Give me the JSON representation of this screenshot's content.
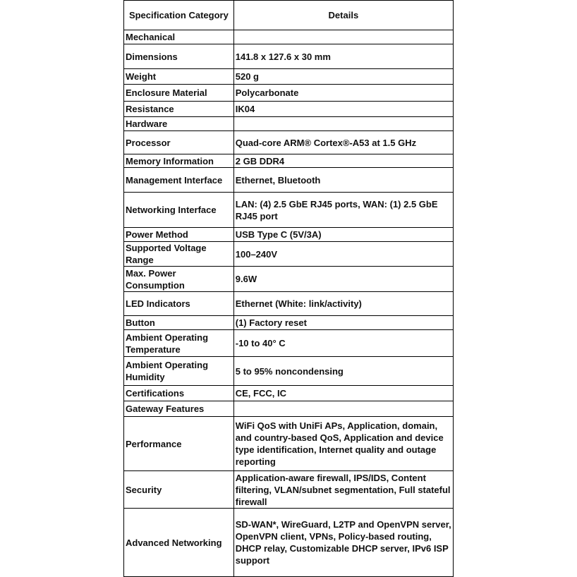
{
  "header": {
    "category": "Specification Category",
    "details": "Details"
  },
  "rows": [
    {
      "category": "Mechanical",
      "details": ""
    },
    {
      "category": "Dimensions",
      "details": "141.8 x 127.6 x 30 mm"
    },
    {
      "category": "Weight",
      "details": "520 g"
    },
    {
      "category": "Enclosure Material",
      "details": "Polycarbonate"
    },
    {
      "category": "Resistance",
      "details": "IK04"
    },
    {
      "category": "Hardware",
      "details": ""
    },
    {
      "category": "Processor",
      "details": "Quad-core ARM® Cortex®-A53 at 1.5 GHz"
    },
    {
      "category": "Memory Information",
      "details": "2 GB DDR4"
    },
    {
      "category": "Management Interface",
      "details": "Ethernet, Bluetooth"
    },
    {
      "category": "Networking Interface",
      "details": "LAN: (4) 2.5 GbE RJ45 ports, WAN: (1) 2.5 GbE RJ45 port"
    },
    {
      "category": "Power Method",
      "details": "USB Type C (5V/3A)"
    },
    {
      "category": "Supported Voltage Range",
      "details": "100–240V"
    },
    {
      "category": "Max. Power Consumption",
      "details": "9.6W"
    },
    {
      "category": "LED Indicators",
      "details": "Ethernet (White: link/activity)"
    },
    {
      "category": "Button",
      "details": "(1) Factory reset"
    },
    {
      "category": "Ambient Operating Temperature",
      "details": "-10 to 40° C"
    },
    {
      "category": "Ambient Operating Humidity",
      "details": "5 to 95% noncondensing"
    },
    {
      "category": "Certifications",
      "details": "CE, FCC, IC"
    },
    {
      "category": "Gateway Features",
      "details": ""
    },
    {
      "category": "Performance",
      "details": "WiFi QoS with UniFi APs, Application, domain, and country-based QoS, Application and device type identification, Internet quality and outage reporting"
    },
    {
      "category": "Security",
      "details": "Application-aware firewall, IPS/IDS, Content filtering, VLAN/subnet segmentation, Full stateful firewall"
    },
    {
      "category": "Advanced Networking",
      "details": "SD-WAN*, WireGuard, L2TP and OpenVPN server, OpenVPN client, VPNs, Policy-based routing, DHCP relay, Customizable DHCP server, IPv6 ISP support"
    }
  ]
}
